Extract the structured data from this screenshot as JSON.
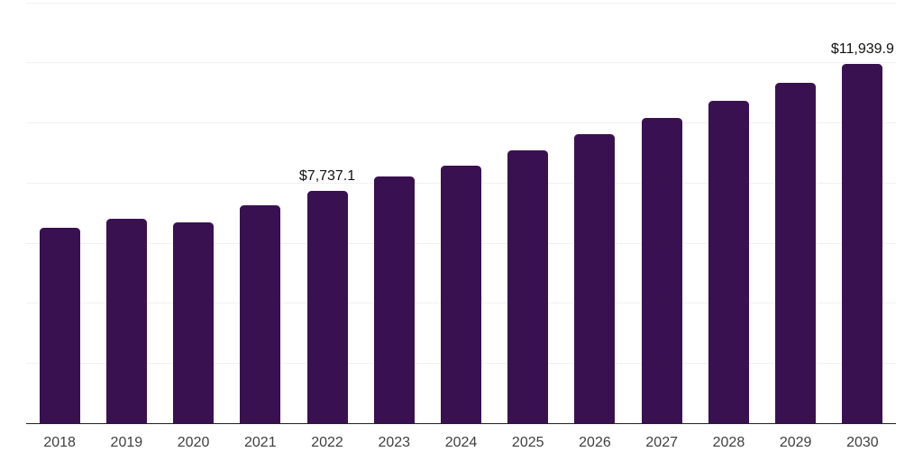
{
  "chart_data": {
    "type": "bar",
    "title": "",
    "xlabel": "",
    "ylabel": "",
    "categories": [
      "2018",
      "2019",
      "2020",
      "2021",
      "2022",
      "2023",
      "2024",
      "2025",
      "2026",
      "2027",
      "2028",
      "2029",
      "2030"
    ],
    "values": [
      6485,
      6810,
      6675,
      7260,
      7737.1,
      8215,
      8570,
      9075,
      9615,
      10150,
      10720,
      11315,
      11939.9
    ],
    "data_labels": [
      {
        "category": "2022",
        "text": "$7,737.1"
      },
      {
        "category": "2030",
        "text": "$11,939.9"
      }
    ],
    "ylim": [
      0,
      14000
    ],
    "grid_step": 2000,
    "grid": "horizontal-only",
    "legend": "none",
    "y_tick_labels_visible": false,
    "colors": {
      "bar": "#3A1150",
      "grid": "#f1f1f4",
      "axis_line": "#222226",
      "data_label": "#111111",
      "tick_label": "#3f3f3f",
      "background": "#ffffff"
    }
  }
}
